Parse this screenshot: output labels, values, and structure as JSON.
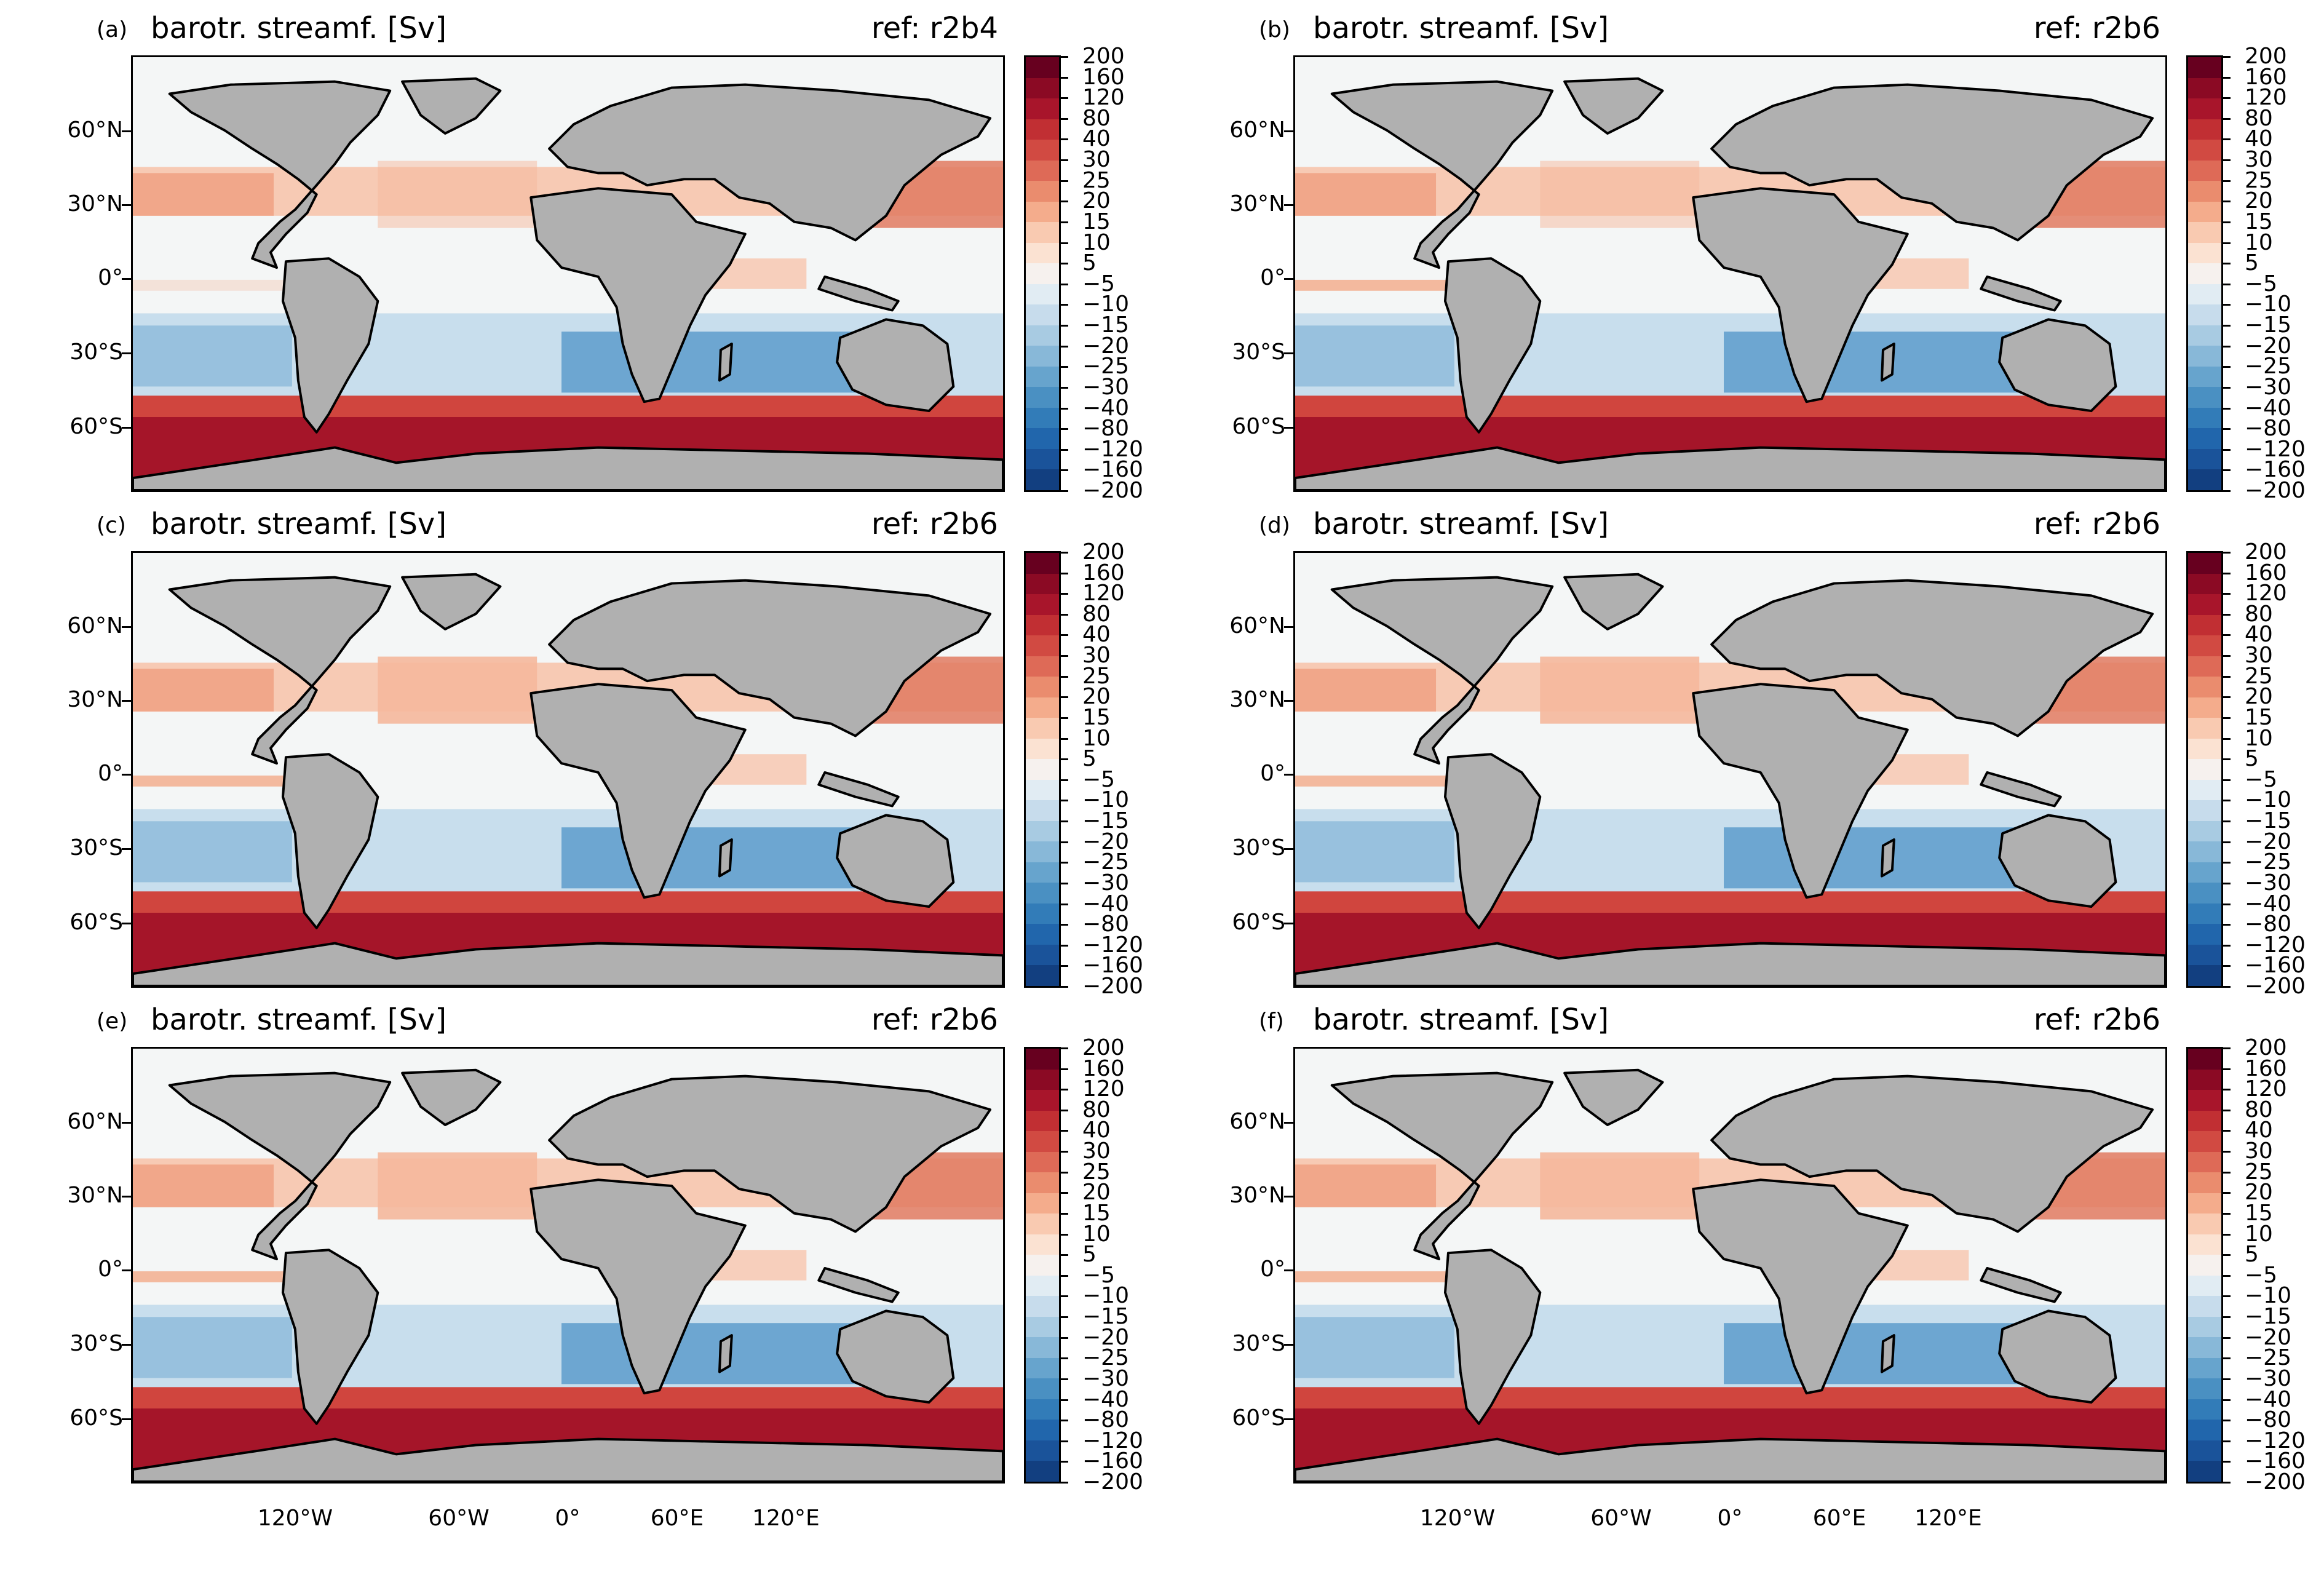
{
  "panels": [
    {
      "label": "(a)",
      "title": "barotr. streamf. [Sv]",
      "ref": "ref: r2b4"
    },
    {
      "label": "(b)",
      "title": "barotr. streamf. [Sv]",
      "ref": "ref: r2b6"
    },
    {
      "label": "(c)",
      "title": "barotr. streamf. [Sv]",
      "ref": "ref: r2b6"
    },
    {
      "label": "(d)",
      "title": "barotr. streamf. [Sv]",
      "ref": "ref: r2b6"
    },
    {
      "label": "(e)",
      "title": "barotr. streamf. [Sv]",
      "ref": "ref: r2b6"
    },
    {
      "label": "(f)",
      "title": "barotr. streamf. [Sv]",
      "ref": "ref: r2b6"
    }
  ],
  "lat_labels": [
    "60°N",
    "30°N",
    "0°",
    "30°S",
    "60°S"
  ],
  "lon_labels": [
    "120°W",
    "60°W",
    "0°",
    "60°E",
    "120°E"
  ],
  "colorbar": {
    "labels": [
      "200",
      "160",
      "120",
      "80",
      "40",
      "30",
      "25",
      "20",
      "15",
      "10",
      "5",
      "−5",
      "−10",
      "−15",
      "−20",
      "−25",
      "−30",
      "−40",
      "−80",
      "−120",
      "−160",
      "−200"
    ],
    "colors": [
      "#67001f",
      "#8b0a24",
      "#a8152b",
      "#c12f33",
      "#d14a42",
      "#de6a57",
      "#ea8c6e",
      "#f4ac8c",
      "#f9cab1",
      "#fbe2d2",
      "#f6f1ee",
      "#e1ecf3",
      "#c7dcec",
      "#a8cbe2",
      "#88b8d8",
      "#67a4cd",
      "#4a90c2",
      "#327cb8",
      "#2166ac",
      "#1a539a",
      "#123f80"
    ]
  },
  "colors": {
    "land": "#b0b0b0",
    "ocean_neutral": "#f4f6f6",
    "coast": "#000000"
  }
}
